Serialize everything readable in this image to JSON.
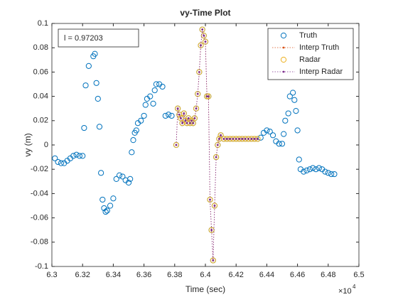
{
  "chart_data": {
    "type": "scatter-line",
    "title": "vy-Time Plot",
    "x_label": "Time (sec)",
    "y_label": "vy (m)",
    "x_multiplier": {
      "base": "×10",
      "exponent": "4"
    },
    "annotation": "l = 0.97203",
    "xlim": [
      6.3,
      6.5
    ],
    "xticks": [
      6.3,
      6.32,
      6.34,
      6.36,
      6.38,
      6.4,
      6.42,
      6.44,
      6.46,
      6.48,
      6.5
    ],
    "ylim": [
      -0.1,
      0.1
    ],
    "yticks": [
      -0.1,
      -0.08,
      -0.06,
      -0.04,
      -0.02,
      0,
      0.02,
      0.04,
      0.06,
      0.08,
      0.1
    ],
    "grid": false,
    "legend": "northeast",
    "series": [
      {
        "name": "Truth",
        "color": "#0072bd",
        "marker": "circle",
        "line": "none",
        "x": [
          6.302,
          6.304,
          6.306,
          6.308,
          6.31,
          6.312,
          6.314,
          6.316,
          6.318,
          6.32,
          6.321,
          6.322,
          6.324,
          6.325,
          6.326,
          6.327,
          6.328,
          6.329,
          6.33,
          6.331,
          6.332,
          6.333,
          6.334,
          6.335,
          6.336,
          6.338,
          6.34,
          6.342,
          6.344,
          6.346,
          6.348,
          6.35,
          6.351,
          6.352,
          6.353,
          6.354,
          6.355,
          6.356,
          6.358,
          6.36,
          6.361,
          6.362,
          6.364,
          6.366,
          6.367,
          6.368,
          6.37,
          6.372,
          6.374,
          6.376,
          6.378,
          6.381,
          6.382,
          6.383,
          6.384,
          6.385,
          6.386,
          6.387,
          6.388,
          6.389,
          6.39,
          6.391,
          6.392,
          6.393,
          6.394,
          6.395,
          6.396,
          6.397,
          6.398,
          6.399,
          6.4,
          6.401,
          6.402,
          6.403,
          6.404,
          6.405,
          6.406,
          6.407,
          6.408,
          6.409,
          6.41,
          6.412,
          6.414,
          6.416,
          6.418,
          6.42,
          6.422,
          6.424,
          6.426,
          6.428,
          6.43,
          6.432,
          6.434,
          6.436,
          6.438,
          6.44,
          6.442,
          6.444,
          6.446,
          6.448,
          6.45,
          6.451,
          6.452,
          6.454,
          6.455,
          6.457,
          6.458,
          6.459,
          6.46,
          6.461,
          6.462,
          6.464,
          6.466,
          6.468,
          6.47,
          6.472,
          6.474,
          6.476,
          6.478,
          6.48,
          6.482,
          6.484
        ],
        "values": [
          -0.011,
          -0.014,
          -0.015,
          -0.015,
          -0.013,
          -0.011,
          -0.009,
          -0.008,
          -0.009,
          -0.009,
          0.014,
          0.049,
          0.065,
          0.09,
          0.089,
          0.073,
          0.075,
          0.051,
          0.038,
          0.015,
          -0.023,
          -0.045,
          -0.052,
          -0.055,
          -0.054,
          -0.05,
          -0.044,
          -0.028,
          -0.025,
          -0.026,
          -0.029,
          -0.031,
          -0.028,
          -0.006,
          0.004,
          0.01,
          0.012,
          0.018,
          0.02,
          0.024,
          0.033,
          0.038,
          0.04,
          0.034,
          0.045,
          0.05,
          0.05,
          0.048,
          0.024,
          0.025,
          0.024,
          0,
          0.03,
          0.025,
          0.022,
          0.018,
          0.026,
          0.02,
          0.018,
          0.022,
          0.018,
          0.02,
          0.018,
          0.022,
          0.03,
          0.042,
          0.06,
          0.082,
          0.095,
          0.09,
          0.085,
          0.04,
          0.04,
          -0.045,
          -0.07,
          -0.095,
          -0.05,
          -0.01,
          0,
          0.005,
          0.008,
          0.005,
          0.005,
          0.005,
          0.005,
          0.005,
          0.005,
          0.005,
          0.005,
          0.005,
          0.005,
          0.005,
          0.005,
          0.006,
          0.01,
          0.012,
          0.011,
          0.008,
          0.003,
          0.001,
          0.001,
          0.009,
          0.02,
          0.026,
          0.04,
          0.043,
          0.037,
          0.028,
          0.012,
          -0.012,
          -0.02,
          -0.022,
          -0.021,
          -0.02,
          -0.019,
          -0.02,
          -0.019,
          -0.02,
          -0.022,
          -0.023,
          -0.024,
          -0.024
        ]
      },
      {
        "name": "Interp Truth",
        "color": "#d95319",
        "marker": "dot",
        "line": "dotted",
        "x": [
          6.381,
          6.382,
          6.383,
          6.384,
          6.385,
          6.386,
          6.387,
          6.388,
          6.389,
          6.39,
          6.391,
          6.392,
          6.393,
          6.394,
          6.395,
          6.396,
          6.397,
          6.398,
          6.399,
          6.4,
          6.401,
          6.402,
          6.403,
          6.404,
          6.405,
          6.406,
          6.407,
          6.408,
          6.409,
          6.41,
          6.412,
          6.414,
          6.416,
          6.418,
          6.42,
          6.422,
          6.424,
          6.426,
          6.428,
          6.43,
          6.432,
          6.434
        ],
        "values": [
          0,
          0.03,
          0.025,
          0.022,
          0.018,
          0.026,
          0.02,
          0.018,
          0.022,
          0.018,
          0.02,
          0.018,
          0.022,
          0.03,
          0.042,
          0.06,
          0.082,
          0.095,
          0.09,
          0.085,
          0.04,
          0.04,
          -0.045,
          -0.07,
          -0.095,
          -0.05,
          -0.01,
          0,
          0.005,
          0.008,
          0.005,
          0.005,
          0.005,
          0.005,
          0.005,
          0.005,
          0.005,
          0.005,
          0.005,
          0.005,
          0.005,
          0.005
        ]
      },
      {
        "name": "Radar",
        "color": "#edb120",
        "marker": "circle",
        "line": "none",
        "x": [
          6.381,
          6.382,
          6.383,
          6.384,
          6.385,
          6.386,
          6.387,
          6.388,
          6.389,
          6.39,
          6.391,
          6.392,
          6.393,
          6.394,
          6.395,
          6.396,
          6.397,
          6.398,
          6.399,
          6.4,
          6.401,
          6.402,
          6.403,
          6.404,
          6.405,
          6.406,
          6.407,
          6.408,
          6.409,
          6.41,
          6.412,
          6.414,
          6.416,
          6.418,
          6.42,
          6.422,
          6.424,
          6.426,
          6.428,
          6.43,
          6.432,
          6.434
        ],
        "values": [
          0,
          0.03,
          0.025,
          0.022,
          0.018,
          0.026,
          0.02,
          0.018,
          0.022,
          0.018,
          0.02,
          0.018,
          0.022,
          0.03,
          0.042,
          0.06,
          0.082,
          0.095,
          0.09,
          0.085,
          0.04,
          0.04,
          -0.045,
          -0.07,
          -0.095,
          -0.05,
          -0.01,
          0,
          0.005,
          0.008,
          0.005,
          0.005,
          0.005,
          0.005,
          0.005,
          0.005,
          0.005,
          0.005,
          0.005,
          0.005,
          0.005,
          0.005
        ]
      },
      {
        "name": "Interp Radar",
        "color": "#7e2f8e",
        "marker": "dot",
        "line": "dotted",
        "x": [
          6.381,
          6.382,
          6.383,
          6.384,
          6.385,
          6.386,
          6.387,
          6.388,
          6.389,
          6.39,
          6.391,
          6.392,
          6.393,
          6.394,
          6.395,
          6.396,
          6.397,
          6.398,
          6.399,
          6.4,
          6.401,
          6.402,
          6.403,
          6.404,
          6.405,
          6.406,
          6.407,
          6.408,
          6.409,
          6.41,
          6.412,
          6.414,
          6.416,
          6.418,
          6.42,
          6.422,
          6.424,
          6.426,
          6.428,
          6.43,
          6.432,
          6.434
        ],
        "values": [
          0,
          0.03,
          0.025,
          0.022,
          0.018,
          0.026,
          0.02,
          0.018,
          0.022,
          0.018,
          0.02,
          0.018,
          0.022,
          0.03,
          0.042,
          0.06,
          0.082,
          0.095,
          0.09,
          0.085,
          0.04,
          0.04,
          -0.045,
          -0.07,
          -0.095,
          -0.05,
          -0.01,
          0,
          0.005,
          0.008,
          0.005,
          0.005,
          0.005,
          0.005,
          0.005,
          0.005,
          0.005,
          0.005,
          0.005,
          0.005,
          0.005,
          0.005
        ]
      }
    ]
  }
}
